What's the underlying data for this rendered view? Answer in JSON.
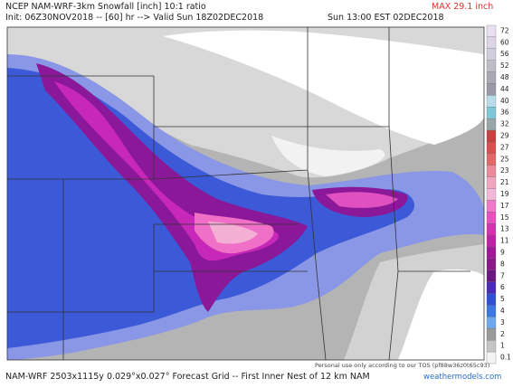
{
  "header": {
    "title": "NCEP NAM-WRF-3km Snowfall [inch] 10:1 ratio",
    "init": "Init: 06Z30NOV2018 -- [60] hr --> Valid Sun 18Z02DEC2018",
    "valid_local": "Sun 13:00 EST 02DEC2018",
    "max": "MAX 29.1 inch"
  },
  "footer": {
    "grid": "NAM-WRF 2503x1115y 0.029°x0.027° Forecast Grid -- First Inner Nest of 12 km NAM",
    "terms": "Personal use only according to our TOS (pf88w36z0t65c93)",
    "credit": "weathermodels.com"
  },
  "colorbar": {
    "labels": [
      72,
      60,
      56,
      52,
      48,
      44,
      40,
      36,
      32,
      29,
      27,
      25,
      23,
      21,
      19,
      17,
      15,
      13,
      11,
      9,
      8,
      7,
      6,
      5,
      4,
      3,
      2,
      1,
      0.1
    ],
    "colors": [
      "#e8e0ee",
      "#dcd6e4",
      "#cfcfdc",
      "#bdbdc8",
      "#a9a9b4",
      "#9a9aa6",
      "#b8dce8",
      "#7fc6d6",
      "#9aa6a8",
      "#c84040",
      "#d85050",
      "#e06868",
      "#ea8a9a",
      "#f0a6c0",
      "#f4b8d8",
      "#f078c8",
      "#e850c0",
      "#d830b0",
      "#c020a8",
      "#a01898",
      "#8a1888",
      "#6a1880",
      "#4a2ab8",
      "#3050d8",
      "#3c78e0",
      "#6ea8ec",
      "#9a9a9a",
      "#c4c4c4",
      "#f4f4f4"
    ]
  }
}
